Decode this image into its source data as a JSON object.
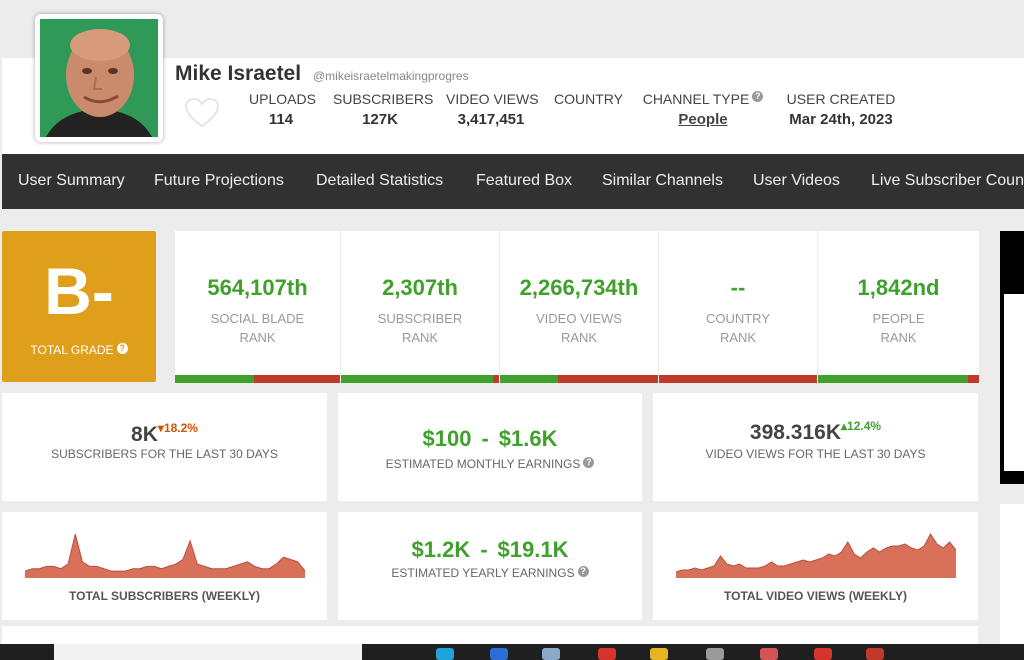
{
  "channel": {
    "name": "Mike Israetel",
    "handle": "@mikeisraetelmakingprogres"
  },
  "header_stats": [
    {
      "label": "UPLOADS",
      "value": "114"
    },
    {
      "label": "SUBSCRIBERS",
      "value": "127K"
    },
    {
      "label": "VIDEO VIEWS",
      "value": "3,417,451"
    },
    {
      "label": "COUNTRY",
      "value": ""
    },
    {
      "label": "CHANNEL TYPE",
      "value": "People"
    },
    {
      "label": "USER CREATED",
      "value": "Mar 24th, 2023"
    }
  ],
  "nav": [
    "User Summary",
    "Future Projections",
    "Detailed Statistics",
    "Featured Box",
    "Similar Channels",
    "User Videos",
    "Live Subscriber Count"
  ],
  "grade": {
    "letter": "B-",
    "label": "TOTAL GRADE"
  },
  "ranks": [
    {
      "value": "564,107th",
      "line1": "SOCIAL BLADE",
      "line2": "RANK",
      "fill": 0.48
    },
    {
      "value": "2,307th",
      "line1": "SUBSCRIBER",
      "line2": "RANK",
      "fill": 0.96
    },
    {
      "value": "2,266,734th",
      "line1": "VIDEO VIEWS",
      "line2": "RANK",
      "fill": 0.37
    },
    {
      "value": "--",
      "line1": "COUNTRY",
      "line2": "RANK",
      "fill": 0.0
    },
    {
      "value": "1,842nd",
      "line1": "PEOPLE",
      "line2": "RANK",
      "fill": 0.93
    }
  ],
  "subs30": {
    "value": "8K",
    "delta": "18.2%",
    "delta_dir": "down",
    "label": "SUBSCRIBERS FOR THE LAST 30 DAYS"
  },
  "monthly": {
    "low": "$100",
    "sep": "-",
    "high": "$1.6K",
    "label": "ESTIMATED MONTHLY EARNINGS"
  },
  "views30": {
    "value": "398.316K",
    "delta": "12.4%",
    "delta_dir": "up",
    "label": "VIDEO VIEWS FOR THE LAST 30 DAYS"
  },
  "yearly": {
    "low": "$1.2K",
    "sep": "-",
    "high": "$19.1K",
    "label": "ESTIMATED YEARLY EARNINGS"
  },
  "chart_data": [
    {
      "type": "area",
      "title": "TOTAL SUBSCRIBERS (WEEKLY)",
      "color": "#d9705a",
      "values": [
        3,
        4,
        4,
        5,
        5,
        4,
        6,
        19,
        7,
        5,
        5,
        4,
        3,
        3,
        3,
        4,
        4,
        5,
        5,
        4,
        5,
        6,
        8,
        16,
        6,
        5,
        4,
        4,
        4,
        5,
        6,
        7,
        5,
        4,
        4,
        6,
        9,
        8,
        7,
        3
      ]
    },
    {
      "type": "area",
      "title": "TOTAL VIDEO VIEWS (WEEKLY)",
      "color": "#d9705a",
      "values": [
        3,
        4,
        4,
        5,
        4,
        5,
        6,
        11,
        7,
        6,
        7,
        5,
        5,
        5,
        6,
        8,
        6,
        6,
        7,
        8,
        9,
        8,
        9,
        10,
        12,
        11,
        13,
        18,
        12,
        10,
        13,
        15,
        13,
        15,
        16,
        16,
        17,
        15,
        14,
        16,
        22,
        17,
        15,
        18,
        14
      ]
    }
  ]
}
